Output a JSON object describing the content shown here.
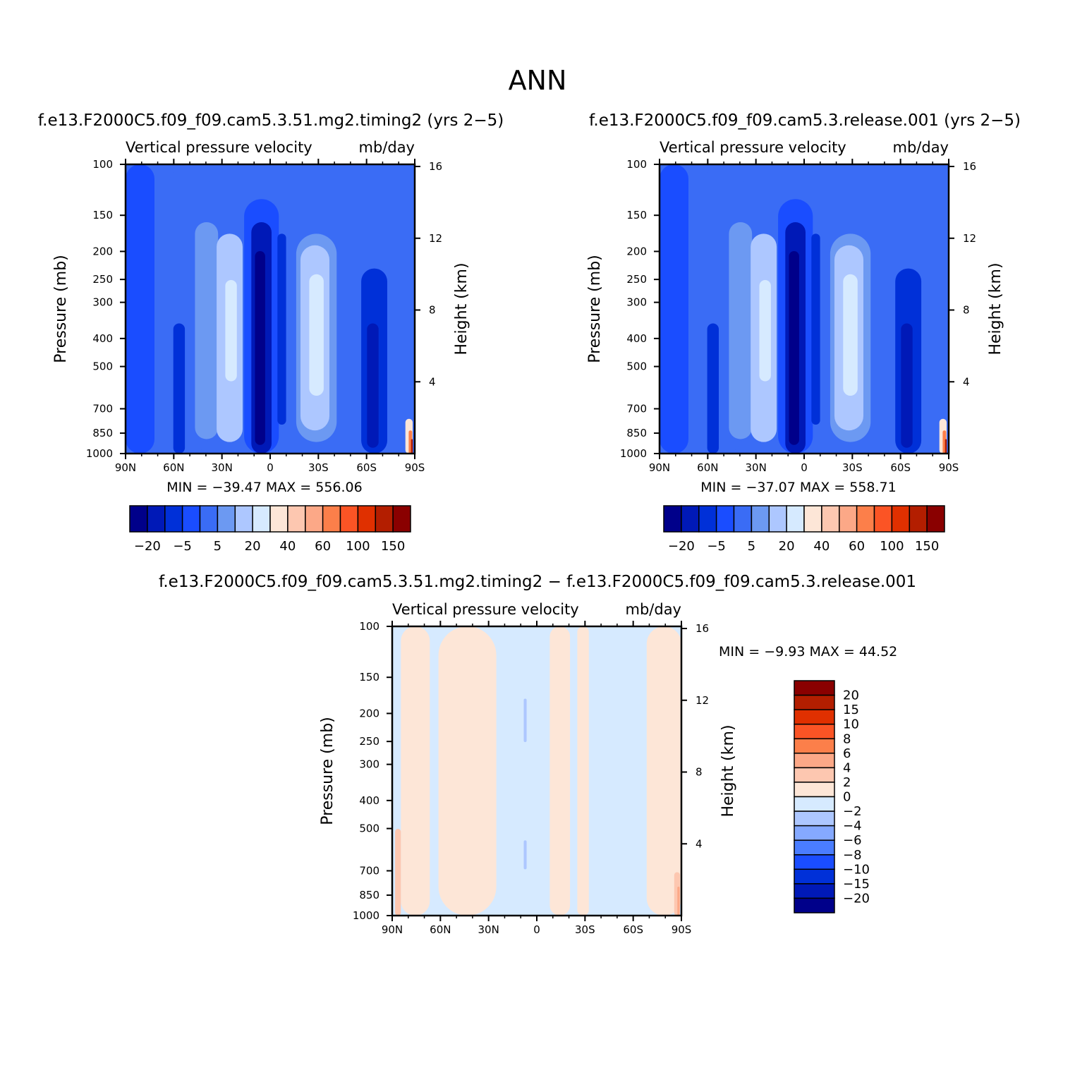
{
  "page": {
    "main_title": "ANN"
  },
  "chart_data": [
    {
      "id": "panel1",
      "type": "heatmap",
      "title": "f.e13.F2000C5.f09_f09.cam5.3.51.mg2.timing2 (yrs 2−5)",
      "inner_title_left": "Vertical pressure velocity",
      "inner_title_right": "mb/day",
      "ylabel": "Pressure (mb)",
      "y2label": "Height (km)",
      "x_ticks": [
        "90N",
        "60N",
        "30N",
        "0",
        "30S",
        "60S",
        "90S"
      ],
      "y_ticks": [
        "100",
        "150",
        "200",
        "250",
        "300",
        "400",
        "500",
        "700",
        "850",
        "1000"
      ],
      "y2_ticks": [
        "16",
        "12",
        "8",
        "4"
      ],
      "ylim": [
        100,
        1000
      ],
      "y_scale": "log",
      "min_label": "MIN =",
      "min_value": "−39.47",
      "max_label": "MAX =",
      "max_value": "556.06",
      "colorbar_labels": [
        "−20",
        "−5",
        "5",
        "20",
        "40",
        "60",
        "100",
        "150"
      ]
    },
    {
      "id": "panel2",
      "type": "heatmap",
      "title": "f.e13.F2000C5.f09_f09.cam5.3.release.001 (yrs 2−5)",
      "inner_title_left": "Vertical pressure velocity",
      "inner_title_right": "mb/day",
      "ylabel": "Pressure (mb)",
      "y2label": "Height (km)",
      "x_ticks": [
        "90N",
        "60N",
        "30N",
        "0",
        "30S",
        "60S",
        "90S"
      ],
      "y_ticks": [
        "100",
        "150",
        "200",
        "250",
        "300",
        "400",
        "500",
        "700",
        "850",
        "1000"
      ],
      "y2_ticks": [
        "16",
        "12",
        "8",
        "4"
      ],
      "ylim": [
        100,
        1000
      ],
      "y_scale": "log",
      "min_label": "MIN =",
      "min_value": "−37.07",
      "max_label": "MAX =",
      "max_value": "558.71",
      "colorbar_labels": [
        "−20",
        "−5",
        "5",
        "20",
        "40",
        "60",
        "100",
        "150"
      ]
    },
    {
      "id": "panel3",
      "type": "heatmap",
      "title": "f.e13.F2000C5.f09_f09.cam5.3.51.mg2.timing2 − f.e13.F2000C5.f09_f09.cam5.3.release.001",
      "inner_title_left": "Vertical pressure velocity",
      "inner_title_right": "mb/day",
      "ylabel": "Pressure (mb)",
      "y2label": "Height (km)",
      "x_ticks": [
        "90N",
        "60N",
        "30N",
        "0",
        "30S",
        "60S",
        "90S"
      ],
      "y_ticks": [
        "100",
        "150",
        "200",
        "250",
        "300",
        "400",
        "500",
        "700",
        "850",
        "1000"
      ],
      "y2_ticks": [
        "16",
        "12",
        "8",
        "4"
      ],
      "ylim": [
        100,
        1000
      ],
      "y_scale": "log",
      "min_label": "MIN =",
      "min_value": "−9.93",
      "max_label": "MAX =",
      "max_value": "44.52",
      "colorbar_labels": [
        "20",
        "15",
        "10",
        "8",
        "6",
        "4",
        "2",
        "0",
        "−2",
        "−4",
        "−6",
        "−8",
        "−10",
        "−15",
        "−20"
      ]
    }
  ],
  "colors": {
    "top_colorbar": [
      "#00008a",
      "#0019b7",
      "#0030d8",
      "#1a4dff",
      "#3a6cf5",
      "#6c99f2",
      "#adc7ff",
      "#d6eaff",
      "#fde6d7",
      "#fdc7b0",
      "#fca887",
      "#fc7f4a",
      "#fb5425",
      "#e03000",
      "#b31e00",
      "#8a0000"
    ],
    "diff_colorbar": [
      "#8a0000",
      "#b31e00",
      "#e03000",
      "#fb5425",
      "#fc7f4a",
      "#fca887",
      "#fdc7b0",
      "#fde6d7",
      "#d6eaff",
      "#adc7ff",
      "#85a9ff",
      "#4a7dff",
      "#1a4dff",
      "#0030d8",
      "#0019b7",
      "#00008a"
    ]
  }
}
